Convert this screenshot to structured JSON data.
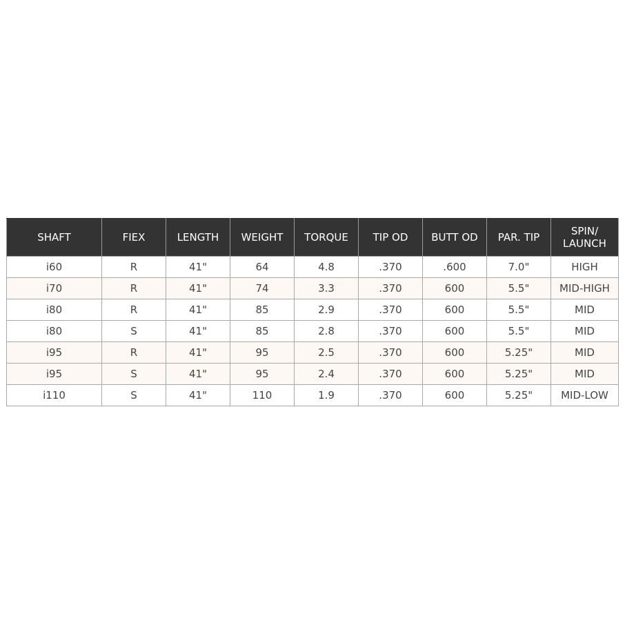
{
  "table": {
    "headers": [
      "SHAFT",
      "FIEX",
      "LENGTH",
      "WEIGHT",
      "TORQUE",
      "TIP OD",
      "BUTT OD",
      "PAR. TIP",
      "SPIN/ LAUNCH"
    ],
    "rows": [
      [
        "i60",
        "R",
        "41\"",
        "64",
        "4.8",
        ".370",
        ".600",
        "7.0\"",
        "HIGH"
      ],
      [
        "i70",
        "R",
        "41\"",
        "74",
        "3.3",
        ".370",
        "600",
        "5.5\"",
        "MID-HIGH"
      ],
      [
        "i80",
        "R",
        "41\"",
        "85",
        "2.9",
        ".370",
        "600",
        "5.5\"",
        "MID"
      ],
      [
        "i80",
        "S",
        "41\"",
        "85",
        "2.8",
        ".370",
        "600",
        "5.5\"",
        "MID"
      ],
      [
        "i95",
        "R",
        "41\"",
        "95",
        "2.5",
        ".370",
        "600",
        "5.25\"",
        "MID"
      ],
      [
        "i95",
        "S",
        "41\"",
        "95",
        "2.4",
        ".370",
        "600",
        "5.25\"",
        "MID"
      ],
      [
        "i110",
        "S",
        "41\"",
        "110",
        "1.9",
        ".370",
        "600",
        "5.25\"",
        "MID-LOW"
      ]
    ],
    "tinted_rows": [
      1,
      4,
      5
    ],
    "colors": {
      "header_bg": "#333333",
      "tint": "#fdf8f3",
      "border": "#a8a8a8"
    }
  }
}
